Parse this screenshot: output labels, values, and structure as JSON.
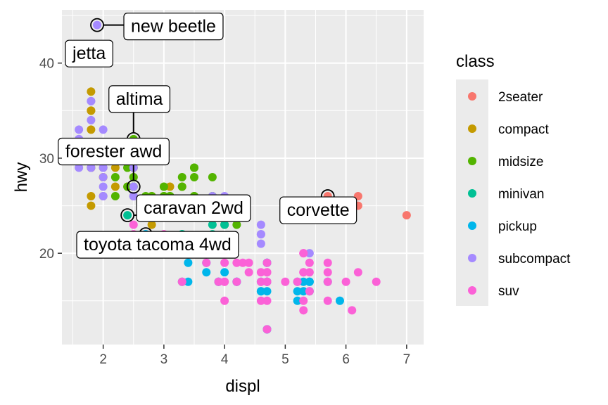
{
  "chart_data": {
    "type": "scatter",
    "xlabel": "displ",
    "ylabel": "hwy",
    "xlim": [
      1.32,
      7.28
    ],
    "ylim": [
      10.4,
      45.6
    ],
    "xticks": [
      2,
      3,
      4,
      5,
      6,
      7
    ],
    "yticks": [
      20,
      30,
      40
    ],
    "grid": true,
    "legend": {
      "title": "class",
      "placement": "right",
      "entries": [
        {
          "name": "2seater",
          "color": "#F8766D"
        },
        {
          "name": "compact",
          "color": "#C49A00"
        },
        {
          "name": "midsize",
          "color": "#53B400"
        },
        {
          "name": "minivan",
          "color": "#00C094"
        },
        {
          "name": "pickup",
          "color": "#00B6EB"
        },
        {
          "name": "subcompact",
          "color": "#A58AFF"
        },
        {
          "name": "suv",
          "color": "#FB61D7"
        }
      ]
    },
    "series": [
      {
        "name": "2seater",
        "points": [
          [
            5.7,
            26
          ],
          [
            6.2,
            26
          ],
          [
            6.2,
            25
          ],
          [
            7.0,
            24
          ]
        ]
      },
      {
        "name": "compact",
        "points": [
          [
            1.8,
            29
          ],
          [
            1.8,
            29
          ],
          [
            2.0,
            31
          ],
          [
            2.0,
            30
          ],
          [
            2.8,
            26
          ],
          [
            2.8,
            26
          ],
          [
            3.1,
            27
          ],
          [
            1.8,
            26
          ],
          [
            1.8,
            25
          ],
          [
            2.0,
            28
          ],
          [
            2.0,
            28
          ],
          [
            2.8,
            25
          ],
          [
            3.1,
            25
          ],
          [
            2.2,
            27
          ],
          [
            2.2,
            29
          ],
          [
            2.4,
            31
          ],
          [
            2.4,
            31
          ],
          [
            3.0,
            26
          ],
          [
            1.8,
            33
          ],
          [
            1.8,
            35
          ],
          [
            1.8,
            37
          ],
          [
            1.8,
            35
          ],
          [
            1.8,
            29
          ],
          [
            2.5,
            26
          ],
          [
            2.5,
            29
          ],
          [
            2.5,
            28
          ],
          [
            2.8,
            23
          ],
          [
            2.8,
            24
          ],
          [
            2.0,
            26
          ],
          [
            2.4,
            27
          ],
          [
            2.0,
            29
          ],
          [
            2.8,
            25
          ],
          [
            3.3,
            27
          ]
        ]
      },
      {
        "name": "midsize",
        "points": [
          [
            2.4,
            27
          ],
          [
            2.4,
            30
          ],
          [
            2.5,
            32
          ],
          [
            2.5,
            26
          ],
          [
            3.5,
            26
          ],
          [
            3.5,
            29
          ],
          [
            2.8,
            26
          ],
          [
            3.1,
            26
          ],
          [
            3.3,
            27
          ],
          [
            3.8,
            26
          ],
          [
            3.8,
            25
          ],
          [
            2.5,
            31
          ],
          [
            2.5,
            29
          ],
          [
            3.5,
            26
          ],
          [
            2.2,
            28
          ],
          [
            2.2,
            26
          ],
          [
            3.1,
            26
          ],
          [
            3.5,
            26
          ],
          [
            3.5,
            29
          ],
          [
            2.7,
            26
          ],
          [
            3.0,
            26
          ],
          [
            3.8,
            28
          ],
          [
            2.5,
            27
          ],
          [
            3.3,
            28
          ],
          [
            3.8,
            26
          ],
          [
            4.0,
            23
          ],
          [
            4.2,
            23
          ],
          [
            5.3,
            25
          ],
          [
            3.5,
            28
          ],
          [
            3.0,
            27
          ],
          [
            2.4,
            29
          ],
          [
            2.4,
            31
          ],
          [
            3.0,
            26
          ],
          [
            2.5,
            28
          ],
          [
            2.5,
            27
          ],
          [
            3.5,
            25
          ],
          [
            3.1,
            26
          ],
          [
            3.4,
            25
          ],
          [
            2.4,
            29
          ],
          [
            3.3,
            24
          ]
        ]
      },
      {
        "name": "minivan",
        "points": [
          [
            2.4,
            24
          ],
          [
            3.0,
            24
          ],
          [
            3.3,
            22
          ],
          [
            3.3,
            22
          ],
          [
            3.3,
            24
          ],
          [
            3.3,
            24
          ],
          [
            3.3,
            17
          ],
          [
            3.8,
            22
          ],
          [
            3.8,
            21
          ],
          [
            3.8,
            23
          ],
          [
            4.0,
            23
          ]
        ]
      },
      {
        "name": "pickup",
        "points": [
          [
            3.7,
            19
          ],
          [
            3.7,
            18
          ],
          [
            3.9,
            17
          ],
          [
            3.9,
            17
          ],
          [
            4.7,
            19
          ],
          [
            4.7,
            19
          ],
          [
            4.7,
            12
          ],
          [
            5.2,
            17
          ],
          [
            5.2,
            15
          ],
          [
            5.7,
            17
          ],
          [
            5.9,
            15
          ],
          [
            4.2,
            17
          ],
          [
            4.2,
            17
          ],
          [
            4.6,
            16
          ],
          [
            4.6,
            16
          ],
          [
            4.6,
            17
          ],
          [
            5.4,
            17
          ],
          [
            5.4,
            16
          ],
          [
            5.4,
            17
          ],
          [
            4.7,
            17
          ],
          [
            4.7,
            17
          ],
          [
            4.7,
            17
          ],
          [
            5.2,
            16
          ],
          [
            5.3,
            17
          ],
          [
            2.7,
            20
          ],
          [
            2.7,
            20
          ],
          [
            2.7,
            22
          ],
          [
            3.4,
            17
          ],
          [
            3.4,
            19
          ],
          [
            4.0,
            18
          ],
          [
            4.0,
            20
          ],
          [
            4.7,
            12
          ],
          [
            4.7,
            16
          ],
          [
            5.3,
            16
          ],
          [
            2.7,
            22
          ]
        ]
      },
      {
        "name": "subcompact",
        "points": [
          [
            1.8,
            29
          ],
          [
            1.8,
            29
          ],
          [
            2.0,
            28
          ],
          [
            2.0,
            29
          ],
          [
            2.5,
            26
          ],
          [
            2.5,
            26
          ],
          [
            2.0,
            26
          ],
          [
            2.0,
            27
          ],
          [
            2.0,
            30
          ],
          [
            2.0,
            33
          ],
          [
            3.8,
            26
          ],
          [
            3.8,
            25
          ],
          [
            4.0,
            26
          ],
          [
            4.0,
            24
          ],
          [
            4.6,
            21
          ],
          [
            4.6,
            22
          ],
          [
            4.6,
            23
          ],
          [
            4.6,
            22
          ],
          [
            5.4,
            20
          ],
          [
            1.6,
            33
          ],
          [
            1.6,
            32
          ],
          [
            1.6,
            32
          ],
          [
            1.6,
            29
          ],
          [
            1.6,
            32
          ],
          [
            1.8,
            34
          ],
          [
            1.8,
            36
          ],
          [
            1.8,
            36
          ],
          [
            2.5,
            29
          ],
          [
            2.5,
            26
          ],
          [
            2.5,
            27
          ],
          [
            2.5,
            30
          ],
          [
            1.9,
            44
          ],
          [
            1.9,
            41
          ],
          [
            2.0,
            29
          ],
          [
            2.0,
            26
          ]
        ]
      },
      {
        "name": "suv",
        "points": [
          [
            5.3,
            20
          ],
          [
            5.3,
            15
          ],
          [
            5.3,
            20
          ],
          [
            5.7,
            17
          ],
          [
            6.0,
            17
          ],
          [
            5.7,
            18
          ],
          [
            5.7,
            15
          ],
          [
            6.2,
            18
          ],
          [
            6.5,
            17
          ],
          [
            4.2,
            17
          ],
          [
            4.7,
            17
          ],
          [
            4.7,
            15
          ],
          [
            4.7,
            17
          ],
          [
            4.7,
            18
          ],
          [
            5.7,
            19
          ],
          [
            6.1,
            14
          ],
          [
            4.0,
            17
          ],
          [
            4.2,
            19
          ],
          [
            4.4,
            18
          ],
          [
            4.6,
            17
          ],
          [
            5.4,
            18
          ],
          [
            5.4,
            19
          ],
          [
            3.9,
            17
          ],
          [
            4.3,
            19
          ],
          [
            4.7,
            12
          ],
          [
            5.0,
            17
          ],
          [
            5.2,
            17
          ],
          [
            4.0,
            15
          ],
          [
            4.6,
            15
          ],
          [
            4.7,
            19
          ],
          [
            5.3,
            14
          ],
          [
            2.5,
            23
          ],
          [
            2.5,
            20
          ],
          [
            2.7,
            20
          ],
          [
            3.0,
            22
          ],
          [
            3.3,
            17
          ],
          [
            3.7,
            19
          ],
          [
            4.0,
            19
          ],
          [
            4.6,
            18
          ],
          [
            5.4,
            16
          ],
          [
            4.4,
            19
          ],
          [
            4.7,
            18
          ],
          [
            5.3,
            18
          ],
          [
            5.3,
            18
          ],
          [
            4.0,
            17
          ],
          [
            2.5,
            22
          ],
          [
            4.7,
            17
          ]
        ]
      }
    ],
    "annotations": [
      {
        "label": "new beetle",
        "x": 1.9,
        "y": 44
      },
      {
        "label": "jetta",
        "x": 1.9,
        "y": 41
      },
      {
        "label": "altima",
        "x": 2.5,
        "y": 32
      },
      {
        "label": "forester awd",
        "x": 2.5,
        "y": 27
      },
      {
        "label": "caravan 2wd",
        "x": 2.4,
        "y": 24
      },
      {
        "label": "corvette",
        "x": 5.7,
        "y": 26
      },
      {
        "label": "toyota tacoma 4wd",
        "x": 2.7,
        "y": 22
      }
    ]
  }
}
